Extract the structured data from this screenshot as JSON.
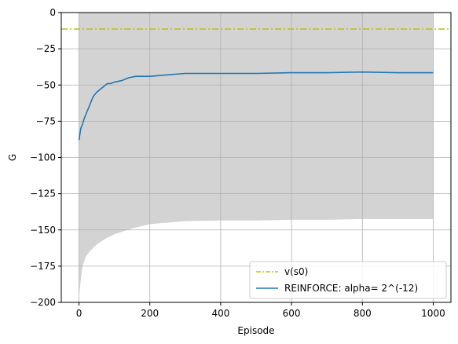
{
  "chart_data": {
    "type": "line",
    "title": "",
    "xlabel": "Episode",
    "ylabel": "G",
    "xlim": [
      -50,
      1050
    ],
    "ylim": [
      -200,
      0
    ],
    "xticks": [
      0,
      200,
      400,
      600,
      800,
      1000
    ],
    "yticks": [
      -200,
      -175,
      -150,
      -125,
      -100,
      -75,
      -50,
      -25,
      0
    ],
    "xtick_labels": [
      "0",
      "200",
      "400",
      "600",
      "800",
      "1000"
    ],
    "ytick_labels": [
      "−200",
      "−175",
      "−150",
      "−125",
      "−100",
      "−75",
      "−50",
      "−25",
      "0"
    ],
    "grid": true,
    "legend_position": "lower-right",
    "colors": {
      "reference": "#bfbf00",
      "series": "#1f77b4",
      "band": "#d3d3d3",
      "grid": "#b0b0b0"
    },
    "series": [
      {
        "name": "v(s0)",
        "style": "dash-dot",
        "y_constant": -11.4
      },
      {
        "name": "REINFORCE: alpha= 2^(-12)",
        "style": "solid",
        "x": [
          0,
          5,
          10,
          15,
          20,
          25,
          30,
          40,
          50,
          60,
          70,
          80,
          90,
          100,
          120,
          140,
          160,
          180,
          200,
          250,
          300,
          350,
          400,
          500,
          600,
          700,
          800,
          900,
          1000
        ],
        "y": [
          -88,
          -80,
          -77,
          -73,
          -70,
          -67,
          -64,
          -58,
          -55,
          -53,
          -51,
          -49,
          -49,
          -48,
          -47,
          -45,
          -44,
          -44,
          -44,
          -43,
          -42,
          -42,
          -42,
          -42,
          -41.5,
          -41.5,
          -41,
          -41.5,
          -41.5
        ]
      }
    ],
    "band": {
      "upper": 0,
      "x": [
        0,
        5,
        10,
        20,
        30,
        50,
        75,
        100,
        150,
        200,
        300,
        400,
        500,
        600,
        700,
        800,
        900,
        1000
      ],
      "lower": [
        -195,
        -185,
        -175,
        -168,
        -165,
        -160,
        -156,
        -153,
        -149,
        -146,
        -144,
        -143.5,
        -143.5,
        -143,
        -143,
        -142.5,
        -142.5,
        -142.5
      ]
    }
  }
}
